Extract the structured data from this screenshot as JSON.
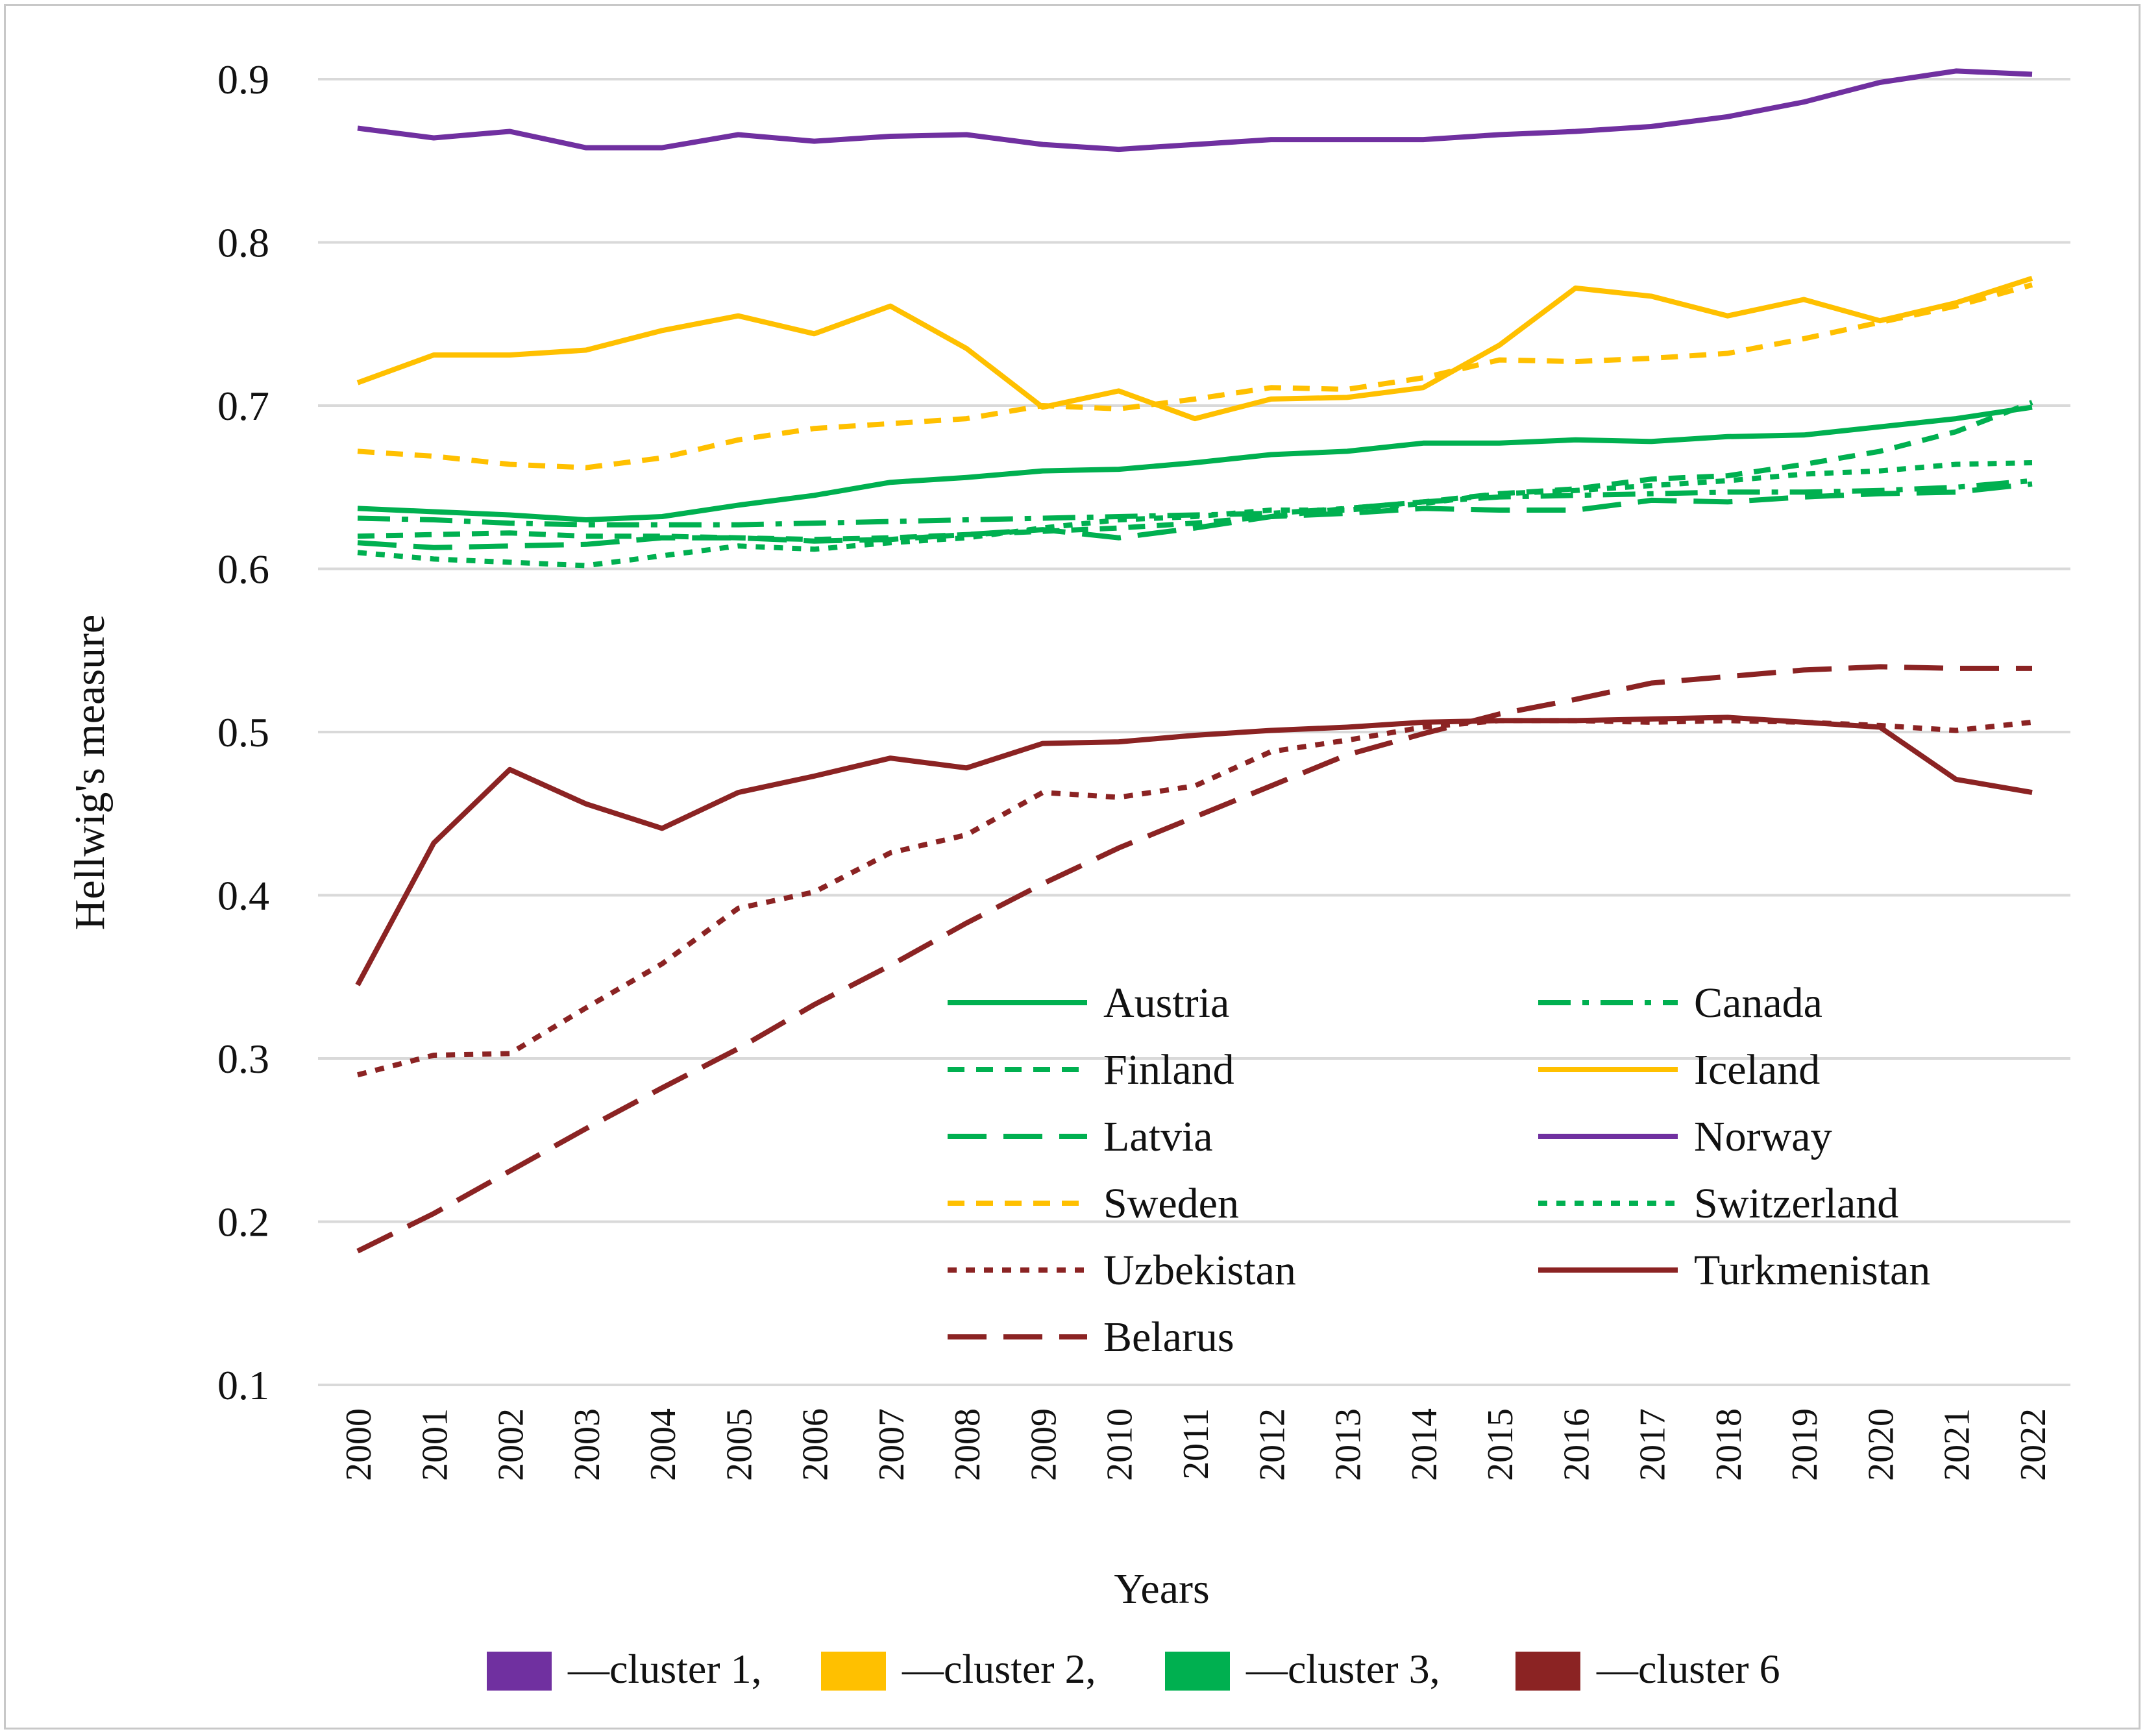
{
  "chart_data": {
    "type": "line",
    "title": "",
    "xlabel": "Years",
    "ylabel": "Hellwig's measure",
    "ylim": [
      0.1,
      0.9
    ],
    "y_ticks": [
      "0.1",
      "0.2",
      "0.3",
      "0.4",
      "0.5",
      "0.6",
      "0.7",
      "0.8",
      "0.9"
    ],
    "grid": true,
    "x": [
      "2000",
      "2001",
      "2002",
      "2003",
      "2004",
      "2005",
      "2006",
      "2007",
      "2008",
      "2009",
      "2010",
      "2011",
      "2012",
      "2013",
      "2014",
      "2015",
      "2016",
      "2017",
      "2018",
      "2019",
      "2020",
      "2021",
      "2022"
    ],
    "series": [
      {
        "name": "Austria",
        "color": "#00b050",
        "dash": "solid",
        "values": [
          0.637,
          0.635,
          0.633,
          0.63,
          0.632,
          0.639,
          0.645,
          0.653,
          0.656,
          0.66,
          0.661,
          0.665,
          0.67,
          0.672,
          0.677,
          0.677,
          0.679,
          0.678,
          0.681,
          0.682,
          0.687,
          0.692,
          0.699
        ]
      },
      {
        "name": "Canada",
        "color": "#00b050",
        "dash": "dashdot",
        "values": [
          0.631,
          0.63,
          0.628,
          0.627,
          0.627,
          0.627,
          0.628,
          0.629,
          0.63,
          0.631,
          0.632,
          0.633,
          0.634,
          0.637,
          0.641,
          0.644,
          0.645,
          0.646,
          0.647,
          0.647,
          0.648,
          0.65,
          0.654
        ]
      },
      {
        "name": "Finland",
        "color": "#00b050",
        "dash": "dash",
        "values": [
          0.62,
          0.621,
          0.622,
          0.62,
          0.62,
          0.619,
          0.618,
          0.619,
          0.621,
          0.623,
          0.625,
          0.628,
          0.632,
          0.637,
          0.641,
          0.646,
          0.649,
          0.655,
          0.657,
          0.664,
          0.672,
          0.684,
          0.702
        ]
      },
      {
        "name": "Iceland",
        "color": "#ffc000",
        "dash": "solid",
        "values": [
          0.714,
          0.731,
          0.731,
          0.734,
          0.746,
          0.755,
          0.744,
          0.761,
          0.735,
          0.699,
          0.709,
          0.692,
          0.704,
          0.705,
          0.711,
          0.737,
          0.772,
          0.767,
          0.755,
          0.765,
          0.752,
          0.763,
          0.778
        ]
      },
      {
        "name": "Latvia",
        "color": "#00b050",
        "dash": "longdash",
        "values": [
          0.616,
          0.613,
          0.614,
          0.615,
          0.619,
          0.619,
          0.617,
          0.618,
          0.621,
          0.624,
          0.619,
          0.625,
          0.632,
          0.634,
          0.637,
          0.636,
          0.636,
          0.642,
          0.641,
          0.644,
          0.646,
          0.647,
          0.652
        ]
      },
      {
        "name": "Norway",
        "color": "#7030a0",
        "dash": "solid",
        "values": [
          0.87,
          0.864,
          0.868,
          0.858,
          0.858,
          0.866,
          0.862,
          0.865,
          0.866,
          0.86,
          0.857,
          0.86,
          0.863,
          0.863,
          0.863,
          0.866,
          0.868,
          0.871,
          0.877,
          0.886,
          0.898,
          0.905,
          0.903
        ]
      },
      {
        "name": "Sweden",
        "color": "#ffc000",
        "dash": "dash",
        "values": [
          0.672,
          0.669,
          0.664,
          0.662,
          0.668,
          0.679,
          0.686,
          0.689,
          0.692,
          0.7,
          0.698,
          0.704,
          0.711,
          0.71,
          0.717,
          0.728,
          0.727,
          0.729,
          0.732,
          0.741,
          0.751,
          0.761,
          0.774
        ]
      },
      {
        "name": "Switzerland",
        "color": "#00b050",
        "dash": "dot",
        "values": [
          0.61,
          0.606,
          0.604,
          0.602,
          0.608,
          0.614,
          0.612,
          0.616,
          0.619,
          0.625,
          0.63,
          0.632,
          0.636,
          0.636,
          0.64,
          0.646,
          0.648,
          0.651,
          0.654,
          0.658,
          0.66,
          0.664,
          0.665
        ]
      },
      {
        "name": "Uzbekistan",
        "color": "#8b2323",
        "dash": "dot",
        "values": [
          0.29,
          0.302,
          0.303,
          0.331,
          0.358,
          0.392,
          0.402,
          0.426,
          0.437,
          0.463,
          0.46,
          0.467,
          0.488,
          0.495,
          0.503,
          0.507,
          0.507,
          0.506,
          0.507,
          0.506,
          0.504,
          0.501,
          0.506
        ]
      },
      {
        "name": "Turkmenistan",
        "color": "#8b2323",
        "dash": "solid",
        "values": [
          0.345,
          0.432,
          0.477,
          0.456,
          0.441,
          0.463,
          0.473,
          0.484,
          0.478,
          0.493,
          0.494,
          0.498,
          0.501,
          0.503,
          0.506,
          0.507,
          0.507,
          0.508,
          0.509,
          0.506,
          0.503,
          0.471,
          0.463
        ]
      },
      {
        "name": "Belarus",
        "color": "#8b2323",
        "dash": "longdash",
        "values": [
          0.182,
          0.205,
          0.231,
          0.257,
          0.282,
          0.306,
          0.333,
          0.357,
          0.383,
          0.407,
          0.429,
          0.448,
          0.467,
          0.486,
          0.499,
          0.511,
          0.52,
          0.53,
          0.534,
          0.538,
          0.54,
          0.539,
          0.539
        ]
      }
    ],
    "legend_position": "lower-right inside plot, two columns",
    "cluster_legend": [
      {
        "color": "#7030a0",
        "label": "—cluster 1,"
      },
      {
        "color": "#ffc000",
        "label": "—cluster 2,"
      },
      {
        "color": "#00b050",
        "label": "—cluster 3,"
      },
      {
        "color": "#8b2323",
        "label": "—cluster 6"
      }
    ]
  }
}
